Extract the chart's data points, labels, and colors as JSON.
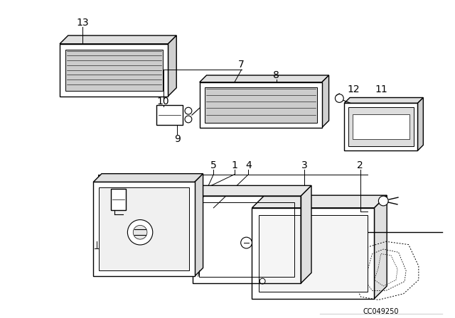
{
  "bg_color": "#ffffff",
  "line_color": "#000000",
  "text_color": "#000000",
  "fig_width": 6.4,
  "fig_height": 4.48,
  "dpi": 100,
  "diagram_code_text": "CC049250"
}
